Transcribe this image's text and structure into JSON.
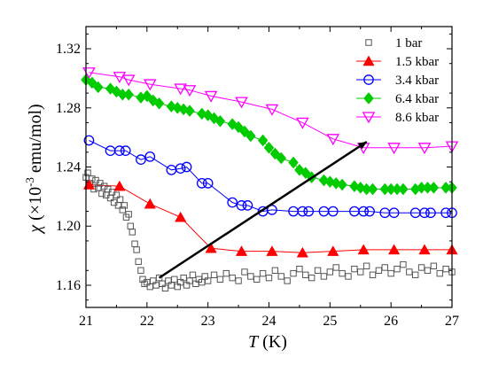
{
  "chart_data": {
    "type": "scatter",
    "xlabel": "T (K)",
    "xlabel_var": "T",
    "xlabel_unit": " (K)",
    "ylabel": "χ (×10⁻³ emu/mol)",
    "ylabel_var": "χ",
    "ylabel_pre": " (×10",
    "ylabel_exp": "-3",
    "ylabel_post": " emu/mol)",
    "xlim": [
      21,
      27
    ],
    "ylim": [
      1.145,
      1.335
    ],
    "x_ticks": [
      "21",
      "22",
      "23",
      "24",
      "25",
      "26",
      "27"
    ],
    "y_ticks": [
      "1.16",
      "1.20",
      "1.24",
      "1.28",
      "1.32"
    ],
    "legend_position": "top-right",
    "arrow": {
      "from": [
        22.2,
        1.165
      ],
      "to": [
        25.6,
        1.257
      ]
    },
    "series": [
      {
        "name": "1 bar",
        "marker": "square-open",
        "color": "#555555",
        "line": false,
        "x": [
          21.0,
          21.03,
          21.06,
          21.1,
          21.13,
          21.16,
          21.2,
          21.23,
          21.26,
          21.3,
          21.33,
          21.36,
          21.4,
          21.43,
          21.46,
          21.5,
          21.53,
          21.56,
          21.6,
          21.63,
          21.66,
          21.7,
          21.73,
          21.76,
          21.8,
          21.83,
          21.86,
          21.9,
          21.93,
          21.96,
          22.0,
          22.05,
          22.1,
          22.15,
          22.2,
          22.25,
          22.3,
          22.35,
          22.4,
          22.45,
          22.5,
          22.55,
          22.6,
          22.65,
          22.7,
          22.75,
          22.8,
          22.85,
          22.9,
          22.95,
          23.0,
          23.1,
          23.2,
          23.3,
          23.4,
          23.5,
          23.6,
          23.7,
          23.8,
          23.9,
          24.0,
          24.1,
          24.2,
          24.3,
          24.4,
          24.5,
          24.6,
          24.7,
          24.8,
          24.9,
          25.0,
          25.1,
          25.2,
          25.3,
          25.4,
          25.5,
          25.6,
          25.7,
          25.8,
          25.9,
          26.0,
          26.1,
          26.2,
          26.3,
          26.4,
          26.5,
          26.6,
          26.7,
          26.8,
          26.9,
          27.0
        ],
        "y": [
          1.233,
          1.236,
          1.229,
          1.232,
          1.225,
          1.231,
          1.226,
          1.229,
          1.222,
          1.227,
          1.221,
          1.225,
          1.219,
          1.223,
          1.216,
          1.221,
          1.214,
          1.218,
          1.211,
          1.214,
          1.206,
          1.208,
          1.2,
          1.196,
          1.188,
          1.184,
          1.176,
          1.17,
          1.164,
          1.161,
          1.162,
          1.159,
          1.163,
          1.16,
          1.165,
          1.161,
          1.158,
          1.163,
          1.16,
          1.164,
          1.159,
          1.162,
          1.165,
          1.16,
          1.163,
          1.167,
          1.161,
          1.164,
          1.162,
          1.166,
          1.163,
          1.167,
          1.164,
          1.168,
          1.165,
          1.163,
          1.169,
          1.166,
          1.164,
          1.168,
          1.165,
          1.17,
          1.166,
          1.163,
          1.168,
          1.171,
          1.167,
          1.165,
          1.17,
          1.166,
          1.169,
          1.172,
          1.168,
          1.166,
          1.171,
          1.169,
          1.173,
          1.167,
          1.17,
          1.172,
          1.168,
          1.171,
          1.174,
          1.169,
          1.167,
          1.172,
          1.17,
          1.173,
          1.168,
          1.171,
          1.169
        ]
      },
      {
        "name": "1.5 kbar",
        "marker": "triangle-up-filled",
        "color": "#ff0000",
        "line": true,
        "x": [
          21.05,
          21.55,
          22.05,
          22.55,
          23.05,
          23.55,
          24.05,
          24.55,
          25.05,
          25.55,
          26.05,
          26.55,
          27.0
        ],
        "y": [
          1.228,
          1.227,
          1.215,
          1.206,
          1.185,
          1.183,
          1.183,
          1.182,
          1.183,
          1.184,
          1.184,
          1.184,
          1.184
        ]
      },
      {
        "name": "3.4 kbar",
        "marker": "circle-open",
        "color": "#0000ff",
        "line": true,
        "x": [
          21.05,
          21.4,
          21.55,
          21.65,
          21.9,
          22.05,
          22.4,
          22.55,
          22.65,
          22.9,
          23.0,
          23.4,
          23.55,
          23.65,
          23.9,
          24.05,
          24.4,
          24.55,
          24.65,
          24.9,
          25.05,
          25.4,
          25.55,
          25.65,
          25.9,
          26.05,
          26.4,
          26.55,
          26.65,
          26.9,
          27.0
        ],
        "y": [
          1.258,
          1.251,
          1.251,
          1.251,
          1.245,
          1.247,
          1.238,
          1.239,
          1.24,
          1.229,
          1.229,
          1.216,
          1.214,
          1.214,
          1.21,
          1.211,
          1.21,
          1.21,
          1.21,
          1.21,
          1.21,
          1.21,
          1.21,
          1.21,
          1.209,
          1.209,
          1.209,
          1.209,
          1.209,
          1.209,
          1.209
        ]
      },
      {
        "name": "6.4 kbar",
        "marker": "diamond-filled",
        "color": "#00cc00",
        "line": true,
        "x": [
          21.0,
          21.1,
          21.2,
          21.4,
          21.5,
          21.6,
          21.7,
          21.9,
          22.0,
          22.1,
          22.2,
          22.4,
          22.5,
          22.6,
          22.7,
          22.9,
          23.0,
          23.1,
          23.2,
          23.4,
          23.5,
          23.6,
          23.7,
          23.9,
          24.0,
          24.1,
          24.2,
          24.4,
          24.5,
          24.6,
          24.7,
          24.9,
          25.0,
          25.1,
          25.2,
          25.4,
          25.5,
          25.6,
          25.7,
          25.9,
          26.0,
          26.1,
          26.2,
          26.4,
          26.5,
          26.6,
          26.7,
          26.9,
          27.0
        ],
        "y": [
          1.299,
          1.297,
          1.294,
          1.293,
          1.291,
          1.289,
          1.289,
          1.287,
          1.288,
          1.285,
          1.283,
          1.281,
          1.28,
          1.279,
          1.278,
          1.276,
          1.275,
          1.273,
          1.271,
          1.269,
          1.267,
          1.264,
          1.261,
          1.258,
          1.253,
          1.249,
          1.246,
          1.243,
          1.238,
          1.236,
          1.233,
          1.231,
          1.23,
          1.229,
          1.228,
          1.227,
          1.226,
          1.225,
          1.225,
          1.225,
          1.225,
          1.225,
          1.225,
          1.225,
          1.226,
          1.226,
          1.226,
          1.226,
          1.226
        ]
      },
      {
        "name": "8.6 kbar",
        "marker": "triangle-down-open",
        "color": "#ff00ff",
        "line": true,
        "x": [
          21.05,
          21.55,
          21.7,
          22.05,
          22.55,
          22.7,
          23.05,
          23.55,
          24.05,
          24.55,
          25.05,
          25.55,
          26.05,
          26.55,
          27.0
        ],
        "y": [
          1.304,
          1.301,
          1.299,
          1.296,
          1.293,
          1.292,
          1.288,
          1.284,
          1.279,
          1.27,
          1.259,
          1.253,
          1.253,
          1.253,
          1.254
        ]
      }
    ]
  }
}
